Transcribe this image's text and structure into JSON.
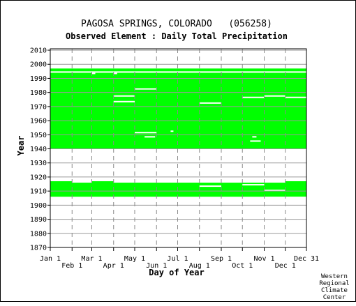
{
  "chart_data": {
    "type": "heatmap",
    "title": "PAGOSA SPRINGS, COLORADO   (056258)",
    "subtitle": "Observed Element : Daily Total Precipitation",
    "xlabel": "Day of Year",
    "ylabel": "Year",
    "xlim": [
      1,
      365
    ],
    "ylim": [
      1870,
      2011
    ],
    "x_ticks_top": [
      {
        "label": "Jan 1",
        "day": 1
      },
      {
        "label": "Mar 1",
        "day": 60
      },
      {
        "label": "May 1",
        "day": 121
      },
      {
        "label": "Jul 1",
        "day": 182
      },
      {
        "label": "Sep 1",
        "day": 244
      },
      {
        "label": "Nov 1",
        "day": 305
      },
      {
        "label": "Dec 31",
        "day": 365
      }
    ],
    "x_ticks_bottom": [
      {
        "label": "Feb 1",
        "day": 32
      },
      {
        "label": "Apr 1",
        "day": 91
      },
      {
        "label": "Jun 1",
        "day": 152
      },
      {
        "label": "Aug 1",
        "day": 213
      },
      {
        "label": "Oct 1",
        "day": 274
      },
      {
        "label": "Dec 1",
        "day": 335
      }
    ],
    "y_ticks": [
      1870,
      1880,
      1890,
      1900,
      1910,
      1920,
      1930,
      1940,
      1950,
      1960,
      1970,
      1980,
      1990,
      2000,
      2010
    ],
    "grid": true,
    "present_color": "#00ff00",
    "data_present_ranges": [
      {
        "day_start": 1,
        "day_end": 365,
        "year_start": 1940,
        "year_end": 1997
      },
      {
        "day_start": 1,
        "day_end": 365,
        "year_start": 1906,
        "year_end": 1917
      }
    ],
    "data_gaps": [
      {
        "day_start": 1,
        "day_end": 365,
        "year_start": 1998,
        "year_end": 1999
      },
      {
        "day_start": 1,
        "day_end": 365,
        "year_start": 1994,
        "year_end": 1995
      },
      {
        "day_start": 121,
        "day_end": 152,
        "year_start": 1982,
        "year_end": 1983
      },
      {
        "day_start": 91,
        "day_end": 121,
        "year_start": 1977,
        "year_end": 1978
      },
      {
        "day_start": 91,
        "day_end": 121,
        "year_start": 1973,
        "year_end": 1974
      },
      {
        "day_start": 213,
        "day_end": 244,
        "year_start": 1972,
        "year_end": 1973
      },
      {
        "day_start": 274,
        "day_end": 305,
        "year_start": 1976,
        "year_end": 1977
      },
      {
        "day_start": 305,
        "day_end": 335,
        "year_start": 1977,
        "year_end": 1978
      },
      {
        "day_start": 335,
        "day_end": 365,
        "year_start": 1976,
        "year_end": 1977
      },
      {
        "day_start": 121,
        "day_end": 152,
        "year_start": 1951,
        "year_end": 1952
      },
      {
        "day_start": 135,
        "day_end": 150,
        "year_start": 1948,
        "year_end": 1949
      },
      {
        "day_start": 285,
        "day_end": 300,
        "year_start": 1945,
        "year_end": 1946
      },
      {
        "day_start": 288,
        "day_end": 294,
        "year_start": 1948,
        "year_end": 1949
      },
      {
        "day_start": 172,
        "day_end": 176,
        "year_start": 1952,
        "year_end": 1953
      },
      {
        "day_start": 60,
        "day_end": 65,
        "year_start": 1993,
        "year_end": 1994
      },
      {
        "day_start": 91,
        "day_end": 96,
        "year_start": 1993,
        "year_end": 1994
      },
      {
        "day_start": 1,
        "day_end": 365,
        "year_start": 1918,
        "year_end": 1939
      },
      {
        "day_start": 32,
        "day_end": 60,
        "year_start": 1916,
        "year_end": 1917
      },
      {
        "day_start": 91,
        "day_end": 335,
        "year_start": 1916,
        "year_end": 1917
      },
      {
        "day_start": 213,
        "day_end": 244,
        "year_start": 1913,
        "year_end": 1914
      },
      {
        "day_start": 274,
        "day_end": 305,
        "year_start": 1914,
        "year_end": 1915
      },
      {
        "day_start": 305,
        "day_end": 335,
        "year_start": 1910,
        "year_end": 1911
      },
      {
        "day_start": 60,
        "day_end": 91,
        "year_start": 1939,
        "year_end": 1940
      },
      {
        "day_start": 305,
        "day_end": 365,
        "year_start": 1905,
        "year_end": 1906
      }
    ],
    "credit": [
      "Western",
      "Regional",
      "Climate",
      "Center"
    ]
  }
}
